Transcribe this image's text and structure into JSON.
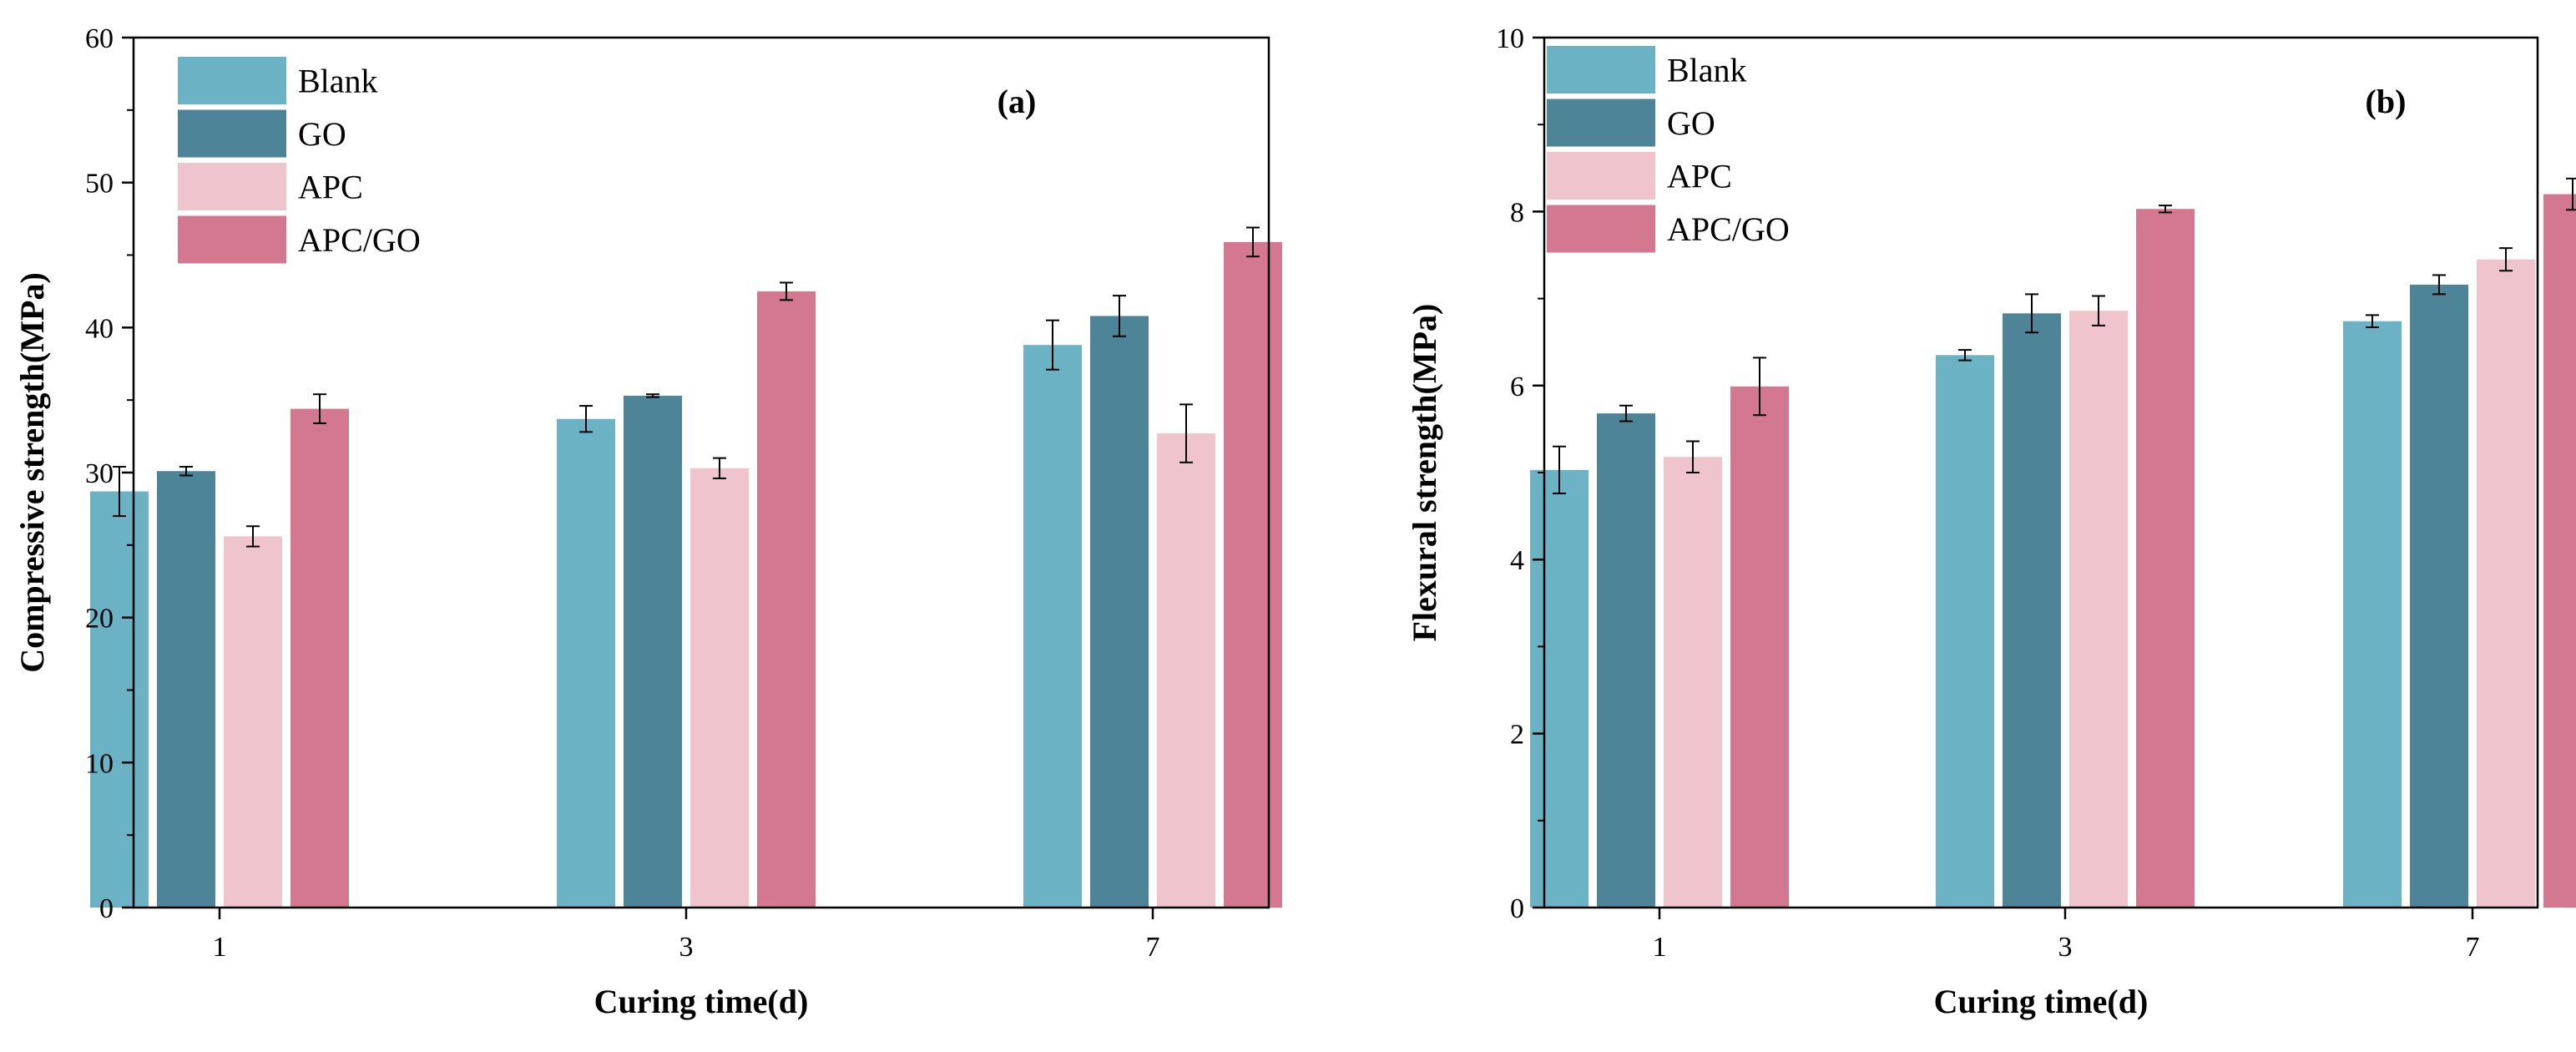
{
  "chart_data": [
    {
      "type": "bar",
      "panel_label": "(a)",
      "title": "",
      "xlabel": "Curing time(d)",
      "ylabel": "Compressive strength(MPa)",
      "ylim": [
        0,
        60
      ],
      "yticks": [
        0,
        10,
        20,
        30,
        40,
        50,
        60
      ],
      "ytick_labels": [
        "0",
        "10",
        "20",
        "30",
        "40",
        "50",
        "60"
      ],
      "categories": [
        "1",
        "3",
        "7"
      ],
      "legend_position": "top-left",
      "series": [
        {
          "name": "Blank",
          "color": "#6bb3c4",
          "values": [
            28.7,
            33.7,
            38.8
          ],
          "errors": [
            1.7,
            0.9,
            1.7
          ]
        },
        {
          "name": "GO",
          "color": "#4d8497",
          "values": [
            30.1,
            35.3,
            40.8
          ],
          "errors": [
            0.3,
            0.1,
            1.4
          ]
        },
        {
          "name": "APC",
          "color": "#efc4cd",
          "values": [
            25.6,
            30.3,
            32.7
          ],
          "errors": [
            0.7,
            0.7,
            2.0
          ]
        },
        {
          "name": "APC/GO",
          "color": "#d47891",
          "values": [
            34.4,
            42.5,
            45.9
          ],
          "errors": [
            1.0,
            0.6,
            1.0
          ]
        }
      ]
    },
    {
      "type": "bar",
      "panel_label": "(b)",
      "title": "",
      "xlabel": "Curing time(d)",
      "ylabel": "Flexural strength(MPa)",
      "ylim": [
        0,
        10
      ],
      "yticks": [
        0,
        2,
        4,
        6,
        8,
        10
      ],
      "ytick_labels": [
        "0",
        "2",
        "4",
        "6",
        "8",
        "10"
      ],
      "categories": [
        "1",
        "3",
        "7"
      ],
      "legend_position": "top-left",
      "series": [
        {
          "name": "Blank",
          "color": "#6bb3c4",
          "values": [
            5.03,
            6.35,
            6.74
          ],
          "errors": [
            0.27,
            0.06,
            0.07
          ]
        },
        {
          "name": "GO",
          "color": "#4d8497",
          "values": [
            5.68,
            6.83,
            7.16
          ],
          "errors": [
            0.09,
            0.22,
            0.11
          ]
        },
        {
          "name": "APC",
          "color": "#efc4cd",
          "values": [
            5.18,
            6.86,
            7.45
          ],
          "errors": [
            0.18,
            0.17,
            0.13
          ]
        },
        {
          "name": "APC/GO",
          "color": "#d47891",
          "values": [
            5.99,
            8.03,
            8.2
          ],
          "errors": [
            0.33,
            0.04,
            0.18
          ]
        }
      ]
    }
  ]
}
